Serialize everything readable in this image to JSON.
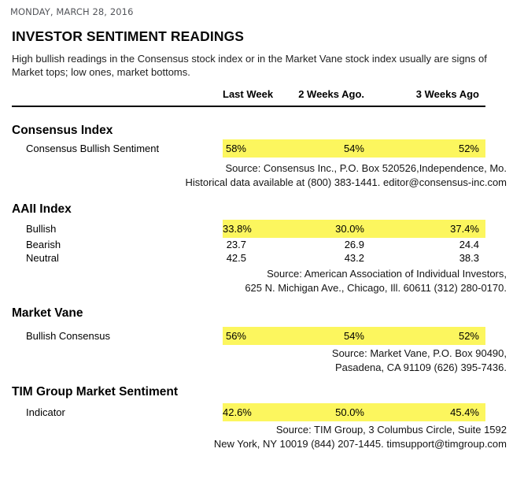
{
  "page": {
    "date": "MONDAY, MARCH 28, 2016",
    "title": "INVESTOR SENTIMENT READINGS",
    "description": "High bullish readings in the Consensus stock index or in the Market Vane stock index usually are signs of Market tops; low ones, market bottoms."
  },
  "table": {
    "highlight_color": "#fcf65e",
    "columns": [
      "Last Week",
      "2 Weeks Ago.",
      "3 Weeks Ago"
    ],
    "sections": [
      {
        "heading": "Consensus Index",
        "rows": [
          {
            "label": "Consensus Bullish Sentiment",
            "values": [
              "58%",
              "54%",
              "52%"
            ],
            "highlighted": true
          }
        ],
        "source_lines": [
          "Source: Consensus Inc., P.O. Box 520526,Independence, Mo.",
          "Historical data available at (800) 383-1441. editor@consensus-inc.com"
        ]
      },
      {
        "heading": "AAII Index",
        "rows": [
          {
            "label": "Bullish",
            "values": [
              "33.8%",
              "30.0%",
              "37.4%"
            ],
            "highlighted": true
          },
          {
            "label": "Bearish",
            "values": [
              "23.7",
              "26.9",
              "24.4"
            ],
            "highlighted": false
          },
          {
            "label": "Neutral",
            "values": [
              "42.5",
              "43.2",
              "38.3"
            ],
            "highlighted": false
          }
        ],
        "source_lines": [
          "Source: American Association of Individual Investors,",
          "625 N. Michigan Ave., Chicago, Ill. 60611 (312) 280-0170."
        ]
      },
      {
        "heading": "Market Vane",
        "rows": [
          {
            "label": "Bullish Consensus",
            "values": [
              "56%",
              "54%",
              "52%"
            ],
            "highlighted": true
          }
        ],
        "source_lines": [
          "Source: Market Vane, P.O. Box 90490,",
          "Pasadena, CA 91109 (626) 395-7436."
        ]
      },
      {
        "heading": "TIM Group Market Sentiment",
        "rows": [
          {
            "label": "Indicator",
            "values": [
              "42.6%",
              "50.0%",
              "45.4%"
            ],
            "highlighted": true
          }
        ],
        "source_lines": [
          "Source: TIM Group, 3 Columbus Circle, Suite 1592",
          "New York, NY 10019 (844) 207-1445. timsupport@timgroup.com"
        ]
      }
    ]
  }
}
